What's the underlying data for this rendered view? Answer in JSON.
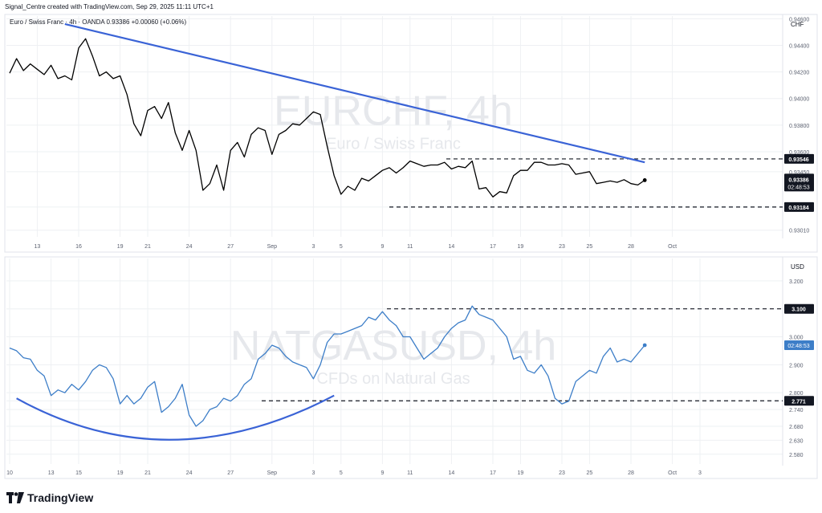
{
  "header": {
    "credit": "Signal_Centre created with TradingView.com, Sep 29, 2025 11:11 UTC+1",
    "symbol_line": "Euro / Swiss Franc · 4h · OANDA  0.93386  +0.00060 (+0.06%)"
  },
  "footer": {
    "brand": "TradingView",
    "logo_icon": "tradingview-logo-icon"
  },
  "colors": {
    "trendline": "#3a63d6",
    "price_line_top": "#000000",
    "price_line_bottom": "#3d7ec8",
    "grid": "#eef0f3",
    "watermark": "#e6e8ec"
  },
  "chart_data": [
    {
      "type": "line",
      "title": "EURCHF, 4h",
      "subtitle": "Euro / Swiss Franc",
      "currency": "CHF",
      "ylim": [
        0.9296,
        0.9462
      ],
      "y_ticks": [
        "0.94600",
        "0.94400",
        "0.94200",
        "0.94000",
        "0.93800",
        "0.93600",
        "0.93450",
        "0.93184",
        "0.93010"
      ],
      "y_tick_values": [
        0.946,
        0.944,
        0.942,
        0.94,
        0.938,
        0.936,
        0.9345,
        0.93184,
        0.9301
      ],
      "x_ticks": [
        "13",
        "16",
        "19",
        "21",
        "24",
        "27",
        "Sep",
        "3",
        "5",
        "9",
        "11",
        "14",
        "17",
        "19",
        "23",
        "25",
        "28",
        "Oct"
      ],
      "x_tick_pos": [
        2,
        5,
        8,
        10,
        13,
        16,
        19,
        22,
        24,
        27,
        29,
        32,
        35,
        37,
        40,
        42,
        45,
        48
      ],
      "x": [
        0,
        0.5,
        1,
        1.5,
        2,
        2.5,
        3,
        3.5,
        4,
        4.5,
        5,
        5.5,
        6,
        6.5,
        7,
        7.5,
        8,
        8.5,
        9,
        9.5,
        10,
        10.5,
        11,
        11.5,
        12,
        12.5,
        13,
        13.5,
        14,
        14.5,
        15,
        15.5,
        16,
        16.5,
        17,
        17.5,
        18,
        18.5,
        19,
        19.5,
        20,
        20.5,
        21,
        21.5,
        22,
        22.5,
        23,
        23.5,
        24,
        24.5,
        25,
        25.5,
        26,
        26.5,
        27,
        27.5,
        28,
        28.5,
        29,
        29.5,
        30,
        30.5,
        31,
        31.5,
        32,
        32.5,
        33,
        33.5,
        34,
        34.5,
        35,
        35.5,
        36,
        36.5,
        37,
        37.5,
        38,
        38.5,
        39,
        39.5,
        40,
        40.5,
        41,
        41.5,
        42,
        42.5,
        43,
        43.5,
        44,
        44.5,
        45,
        45.5,
        46
      ],
      "values": [
        0.9419,
        0.943,
        0.9421,
        0.9426,
        0.9422,
        0.9418,
        0.9425,
        0.9415,
        0.9417,
        0.9414,
        0.9438,
        0.9445,
        0.9432,
        0.9417,
        0.942,
        0.9415,
        0.9417,
        0.9403,
        0.9381,
        0.9372,
        0.9391,
        0.9394,
        0.9385,
        0.9397,
        0.9374,
        0.9361,
        0.9376,
        0.9361,
        0.9331,
        0.9336,
        0.935,
        0.9331,
        0.9361,
        0.9367,
        0.9356,
        0.9373,
        0.9378,
        0.9376,
        0.9358,
        0.9373,
        0.9376,
        0.9381,
        0.938,
        0.9385,
        0.939,
        0.9388,
        0.9364,
        0.9342,
        0.9328,
        0.9334,
        0.9331,
        0.934,
        0.9338,
        0.9342,
        0.9346,
        0.9348,
        0.9344,
        0.9348,
        0.9353,
        0.9351,
        0.9349,
        0.935,
        0.935,
        0.9352,
        0.9347,
        0.9349,
        0.9348,
        0.9353,
        0.9332,
        0.9333,
        0.9326,
        0.933,
        0.9329,
        0.9342,
        0.9346,
        0.9346,
        0.9352,
        0.9352,
        0.935,
        0.935,
        0.9351,
        0.935,
        0.9343,
        0.9344,
        0.9345,
        0.9336,
        0.9337,
        0.9338,
        0.9337,
        0.9339,
        0.9336,
        0.9335,
        0.93386
      ],
      "ymark_axis_pos": [
        0.946,
        0.944,
        0.942,
        0.94,
        0.938,
        0.936,
        0.9345,
        0.93184,
        0.9301
      ],
      "levels": [
        {
          "label": "0.93546",
          "value": 0.93546,
          "style": "dashed"
        },
        {
          "label": "0.93184",
          "value": 0.93184,
          "style": "dashed"
        }
      ],
      "current_price": {
        "label": "0.93386",
        "value": 0.93386,
        "countdown": "02:48:53"
      },
      "trendline": {
        "from": [
          4,
          0.9456
        ],
        "to": [
          46,
          0.9352
        ]
      }
    },
    {
      "type": "line",
      "title": "NATGASUSD, 4h",
      "subtitle": "CFDs on Natural Gas",
      "currency": "USD",
      "ylim": [
        2.545,
        3.28
      ],
      "y_ticks": [
        "3.200",
        "3.100",
        "3.000",
        "2.900",
        "2.800",
        "2.771",
        "2.740",
        "2.680",
        "2.630",
        "2.580"
      ],
      "y_tick_values": [
        3.2,
        3.1,
        3.0,
        2.9,
        2.8,
        2.771,
        2.74,
        2.68,
        2.63,
        2.58
      ],
      "x_ticks": [
        "10",
        "13",
        "15",
        "19",
        "21",
        "24",
        "27",
        "Sep",
        "3",
        "5",
        "9",
        "11",
        "14",
        "17",
        "19",
        "23",
        "25",
        "28",
        "Oct",
        "3"
      ],
      "x_tick_pos": [
        0,
        3,
        5,
        8,
        10,
        13,
        16,
        19,
        22,
        24,
        27,
        29,
        32,
        35,
        37,
        40,
        42,
        45,
        48,
        50
      ],
      "x": [
        0,
        0.5,
        1,
        1.5,
        2,
        2.5,
        3,
        3.5,
        4,
        4.5,
        5,
        5.5,
        6,
        6.5,
        7,
        7.5,
        8,
        8.5,
        9,
        9.5,
        10,
        10.5,
        11,
        11.5,
        12,
        12.5,
        13,
        13.5,
        14,
        14.5,
        15,
        15.5,
        16,
        16.5,
        17,
        17.5,
        18,
        18.5,
        19,
        19.5,
        20,
        20.5,
        21,
        21.5,
        22,
        22.5,
        23,
        23.5,
        24,
        24.5,
        25,
        25.5,
        26,
        26.5,
        27,
        27.5,
        28,
        28.5,
        29,
        29.5,
        30,
        30.5,
        31,
        31.5,
        32,
        32.5,
        33,
        33.5,
        34,
        34.5,
        35,
        35.5,
        36,
        36.5,
        37,
        37.5,
        38,
        38.5,
        39,
        39.5,
        40,
        40.5,
        41,
        41.5,
        42,
        42.5,
        43,
        43.5,
        44,
        44.5,
        45,
        45.5,
        46
      ],
      "values": [
        2.96,
        2.95,
        2.925,
        2.92,
        2.88,
        2.86,
        2.79,
        2.81,
        2.8,
        2.83,
        2.81,
        2.84,
        2.88,
        2.9,
        2.89,
        2.85,
        2.76,
        2.79,
        2.76,
        2.78,
        2.82,
        2.84,
        2.73,
        2.75,
        2.78,
        2.83,
        2.72,
        2.68,
        2.7,
        2.74,
        2.75,
        2.78,
        2.77,
        2.79,
        2.83,
        2.85,
        2.92,
        2.94,
        2.97,
        2.96,
        2.93,
        2.91,
        2.9,
        2.89,
        2.85,
        2.9,
        2.98,
        3.01,
        3.01,
        3.02,
        3.03,
        3.04,
        3.07,
        3.06,
        3.09,
        3.06,
        3.04,
        3.0,
        3.0,
        2.96,
        2.92,
        2.94,
        2.96,
        3.0,
        3.03,
        3.05,
        3.06,
        3.11,
        3.08,
        3.07,
        3.06,
        3.03,
        3.0,
        2.92,
        2.93,
        2.88,
        2.87,
        2.9,
        2.86,
        2.78,
        2.76,
        2.77,
        2.84,
        2.86,
        2.88,
        2.87,
        2.93,
        2.96,
        2.91,
        2.92,
        2.91,
        2.94,
        2.97
      ],
      "levels": [
        {
          "label": "3.100",
          "value": 3.1,
          "style": "dashed"
        },
        {
          "label": "2.771",
          "value": 2.771,
          "style": "dashed"
        }
      ],
      "current_price": {
        "countdown": "02:48:53",
        "value": 2.97
      },
      "rounding_bottom": {
        "from": [
          0.5,
          2.78
        ],
        "low": [
          11.5,
          2.632
        ],
        "to": [
          23.5,
          2.79
        ]
      }
    }
  ]
}
